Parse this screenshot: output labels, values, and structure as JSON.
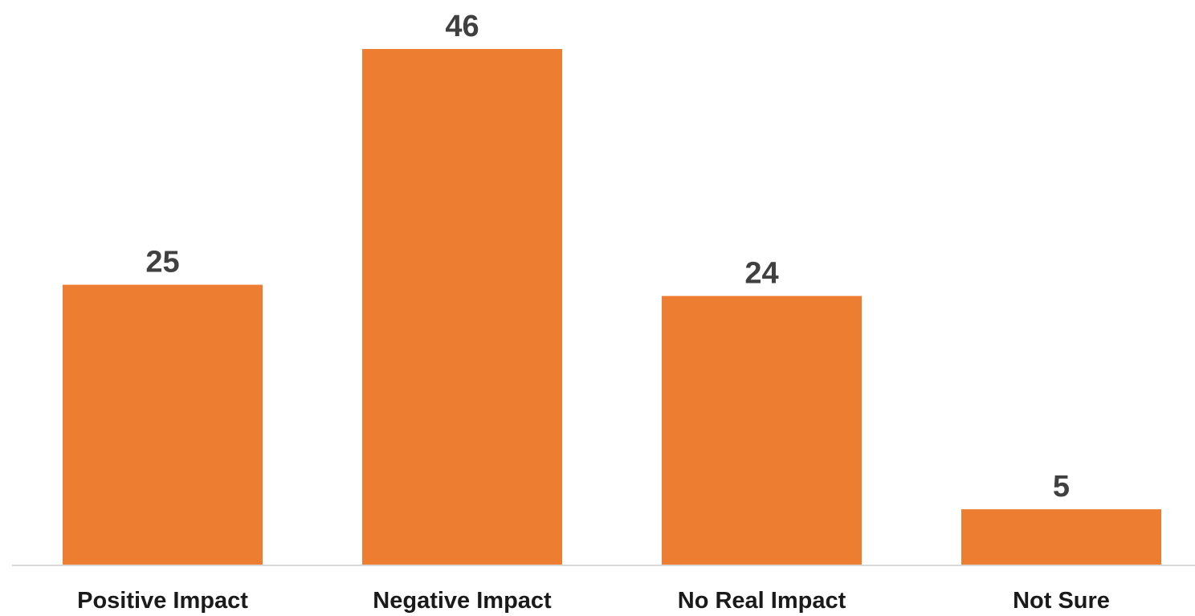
{
  "chart_data": {
    "type": "bar",
    "categories": [
      "Positive Impact",
      "Negative Impact",
      "No Real Impact",
      "Not Sure"
    ],
    "values": [
      25,
      46,
      24,
      5
    ],
    "data_labels": [
      "25",
      "46",
      "24",
      "5"
    ],
    "title": "",
    "xlabel": "",
    "ylabel": "",
    "ylim": [
      0,
      46
    ],
    "grid": false,
    "legend": "none",
    "bar_color": "#ED7D31",
    "axis_color": "#D9D9D9",
    "label_color": "#404040",
    "category_color": "#1A1A1A"
  }
}
